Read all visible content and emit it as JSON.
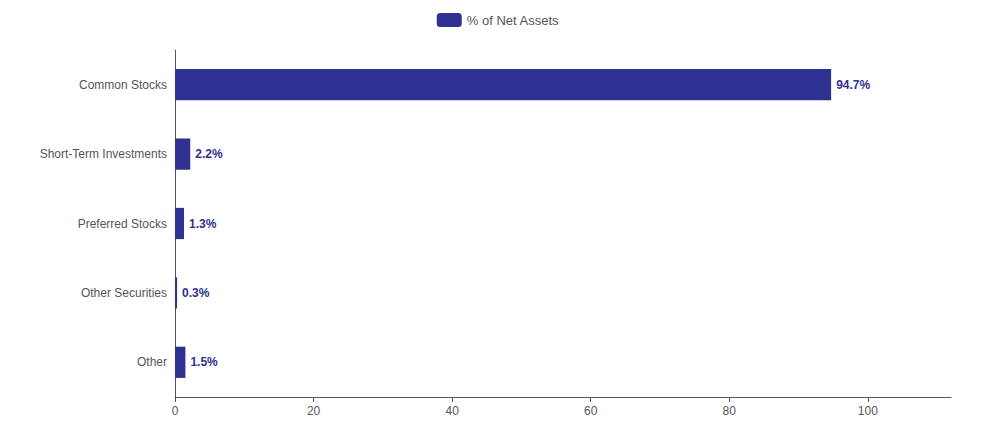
{
  "chart_data": {
    "type": "bar",
    "orientation": "horizontal",
    "categories": [
      "Common Stocks",
      "Short-Term Investments",
      "Preferred Stocks",
      "Other Securities",
      "Other"
    ],
    "series": [
      {
        "name": "% of Net Assets",
        "color": "#2e3192",
        "values": [
          94.7,
          2.2,
          1.3,
          0.3,
          1.5
        ],
        "value_labels": [
          "94.7%",
          "2.2%",
          "1.3%",
          "0.3%",
          "1.5%"
        ]
      }
    ],
    "xlim": [
      0,
      112
    ],
    "xticks": [
      0,
      20,
      40,
      60,
      80,
      100
    ],
    "data_labels": true,
    "legend": "top",
    "grid": false
  }
}
